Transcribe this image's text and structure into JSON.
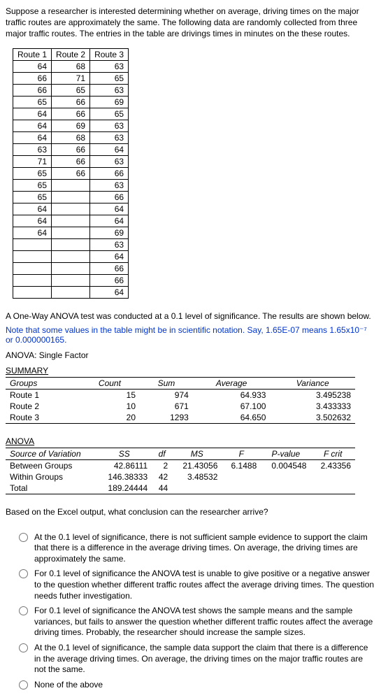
{
  "intro": "Suppose a researcher is interested determining whether on average, driving times on the major traffic routes are approximately the same. The following data are randomly collected from three major traffic routes. The entries in the table are drivings times in minutes on the these routes.",
  "dataTable": {
    "headers": [
      "Route 1",
      "Route 2",
      "Route 3"
    ],
    "rows": [
      [
        "64",
        "68",
        "63"
      ],
      [
        "66",
        "71",
        "65"
      ],
      [
        "66",
        "65",
        "63"
      ],
      [
        "65",
        "66",
        "69"
      ],
      [
        "64",
        "66",
        "65"
      ],
      [
        "64",
        "69",
        "63"
      ],
      [
        "64",
        "68",
        "63"
      ],
      [
        "63",
        "66",
        "64"
      ],
      [
        "71",
        "66",
        "63"
      ],
      [
        "65",
        "66",
        "66"
      ],
      [
        "65",
        "",
        "63"
      ],
      [
        "65",
        "",
        "66"
      ],
      [
        "64",
        "",
        "64"
      ],
      [
        "64",
        "",
        "64"
      ],
      [
        "64",
        "",
        "69"
      ],
      [
        "",
        "",
        "63"
      ],
      [
        "",
        "",
        "64"
      ],
      [
        "",
        "",
        "66"
      ],
      [
        "",
        "",
        "66"
      ],
      [
        "",
        "",
        "64"
      ]
    ]
  },
  "afterData": "A One-Way ANOVA test was conducted at a 0.1 level of significance. The results are shown below.",
  "noteBlue": "Note that some values in the table might be in scientific notation. Say, 1.65E-07 means 1.65x10⁻⁷ or 0.000000165.",
  "anovaTitle": "ANOVA: Single Factor",
  "summaryTitle": "SUMMARY",
  "summary": {
    "headers": [
      "Groups",
      "Count",
      "Sum",
      "Average",
      "Variance"
    ],
    "rows": [
      [
        "Route 1",
        "15",
        "974",
        "64.933",
        "3.495238"
      ],
      [
        "Route 2",
        "10",
        "671",
        "67.100",
        "3.433333"
      ],
      [
        "Route 3",
        "20",
        "1293",
        "64.650",
        "3.502632"
      ]
    ]
  },
  "anovaHeading": "ANOVA",
  "anova": {
    "headers": [
      "Source of Variation",
      "SS",
      "df",
      "MS",
      "F",
      "P-value",
      "F crit"
    ],
    "rows": [
      [
        "Between Groups",
        "42.86111",
        "2",
        "21.43056",
        "6.1488",
        "0.004548",
        "2.43356"
      ],
      [
        "Within Groups",
        "146.38333",
        "42",
        "3.48532",
        "",
        "",
        ""
      ],
      [
        "Total",
        "189.24444",
        "44",
        "",
        "",
        "",
        ""
      ]
    ]
  },
  "question": "Based on the Excel output, what conclusion can the researcher arrive?",
  "options": [
    "At the 0.1 level of significance, there is not sufficient sample evidence to support the claim that there is a difference in the average driving times. On average, the driving times are approximately the same.",
    "For 0.1 level of significance the ANOVA test is unable to give positive or a negative answer to the question whether different traffic routes affect the average driving times. The question needs futher investigation.",
    "For 0.1 level of significance the ANOVA test shows the sample means and the sample variances, but fails to answer the question whether different traffic routes affect the average driving times. Probably, the researcher should increase the sample sizes.",
    "At the 0.1 level of significance, the sample data support the claim that there is a difference in the average driving times. On average, the driving times on the major traffic routes are not the same.",
    "None of the above"
  ]
}
